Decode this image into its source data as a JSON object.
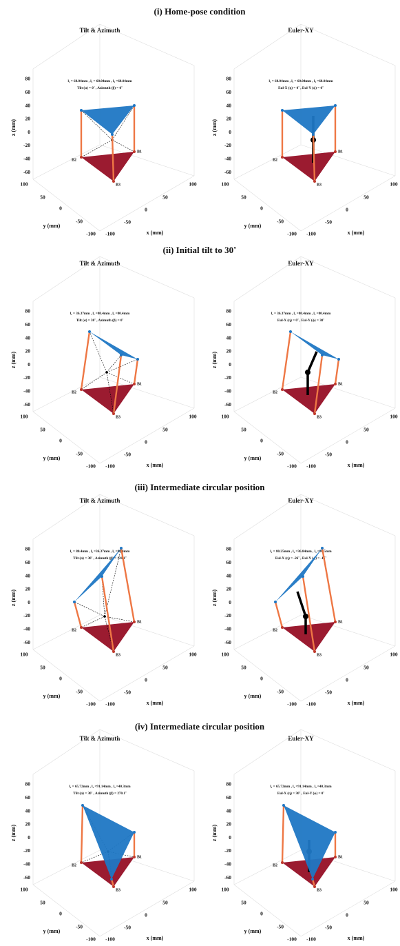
{
  "axes": {
    "xlabel": "x (mm)",
    "ylabel": "y (mm)",
    "zlabel": "z (mm)",
    "zticks": [
      80,
      60,
      40,
      20,
      0,
      -20,
      -40,
      -60
    ],
    "yticks": [
      100,
      50,
      0,
      -50,
      -100
    ],
    "xticks": [
      -100,
      -50,
      0,
      50,
      100
    ],
    "vertices": [
      "B1",
      "B2",
      "B3"
    ]
  },
  "sections": [
    {
      "title": "(i) Home-pose condition",
      "panels": [
        {
          "title": "Tilt & Azimuth",
          "line1": "l₁ = 68.04mm , l₂ = 68.04mm , l₃ =68.04mm",
          "line2": "Tilt (α) = 0˚ , Azimuth (β) = 0˚"
        },
        {
          "title": "Euler-XY",
          "line1": "l₁ = 68.04mm , l₂ = 68.04mm , l₃ =68.04mm",
          "line2": "Eul-X (η) = 0˚ , Eul-Y (ϕ) = 0˚"
        }
      ]
    },
    {
      "title": "(ii) Initial tilt to 30˚",
      "panels": [
        {
          "title": "Tilt & Azimuth",
          "line1": "l₁ = 36.37mm , l₂ =80.4mm , l₃ =80.4mm",
          "line2": "Tilt (α) = 30˚ , Azimuth (β) = 0˚"
        },
        {
          "title": "Euler-XY",
          "line1": "l₁ = 36.37mm , l₂ =80.4mm , l₃ =80.4mm",
          "line2": "Eul-X (η) = 0˚ , Eul-Y (ϕ) = 30˚"
        }
      ]
    },
    {
      "title": "(iii) Intermediate circular position",
      "panels": [
        {
          "title": "Tilt & Azimuth",
          "line1": "l₁ = 80.4mm , l₂ =36.37mm , l₃ =80.4mm",
          "line2": "Tilt (α) = 30˚ , Azimuth (β) = 120.1˚"
        },
        {
          "title": "Euler-XY",
          "line1": "l₁ = 80.25mm , l₂ =36.84mm , l₃ =80.5mm",
          "line2": "Eul-X (η) = -26˚ , Eul-Y (ϕ) = -15˚"
        }
      ]
    },
    {
      "title": "(iv) Intermediate circular position",
      "panels": [
        {
          "title": "Tilt & Azimuth",
          "line1": "l₁ = 65.72mm , l₂ =91.14mm , l₃ =40.3mm",
          "line2": "Tilt (α) = 30˚ , Azimuth (β) = 270.1˚"
        },
        {
          "title": "Euler-XY",
          "line1": "l₁ = 65.72mm , l₂ =91.14mm , l₃ =40.3mm",
          "line2": "Eul-X (η) = 30˚ , Eul-Y (ϕ) = 0˚"
        }
      ]
    }
  ]
}
